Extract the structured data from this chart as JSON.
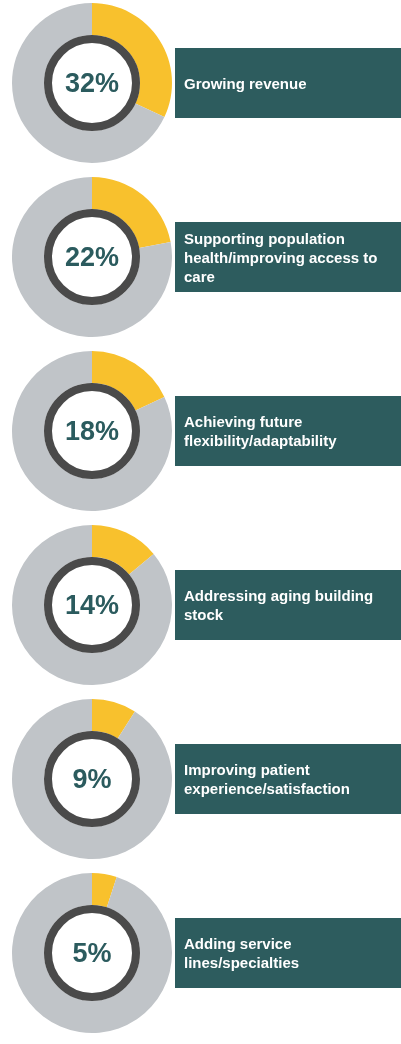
{
  "chart_data": [
    {
      "type": "donut",
      "title": "Growing revenue",
      "categories": [
        null,
        null
      ],
      "values": [
        32,
        68
      ],
      "colors": [
        "#f8c12d",
        "#c0c4c8"
      ],
      "annotations": [
        "32%"
      ]
    },
    {
      "type": "donut",
      "title": "Supporting population health/improving access to care",
      "categories": [
        null,
        null
      ],
      "values": [
        22,
        78
      ],
      "colors": [
        "#f8c12d",
        "#c0c4c8"
      ],
      "annotations": [
        "22%"
      ]
    },
    {
      "type": "donut",
      "title": "Achieving future flexibility/adaptability",
      "categories": [
        null,
        null
      ],
      "values": [
        18,
        82
      ],
      "colors": [
        "#f8c12d",
        "#c0c4c8"
      ],
      "annotations": [
        "18%"
      ]
    },
    {
      "type": "donut",
      "title": "Addressing aging building stock",
      "categories": [
        null,
        null
      ],
      "values": [
        14,
        86
      ],
      "colors": [
        "#f8c12d",
        "#c0c4c8"
      ],
      "annotations": [
        "14%"
      ]
    },
    {
      "type": "donut",
      "title": "Improving patient experience/satisfaction",
      "categories": [
        null,
        null
      ],
      "values": [
        9,
        91
      ],
      "colors": [
        "#f8c12d",
        "#c0c4c8"
      ],
      "annotations": [
        "9%"
      ]
    },
    {
      "type": "donut",
      "title": "Adding service lines/specialties",
      "categories": [
        null,
        null
      ],
      "values": [
        5,
        95
      ],
      "colors": [
        "#f8c12d",
        "#c0c4c8"
      ],
      "annotations": [
        "5%"
      ]
    }
  ]
}
